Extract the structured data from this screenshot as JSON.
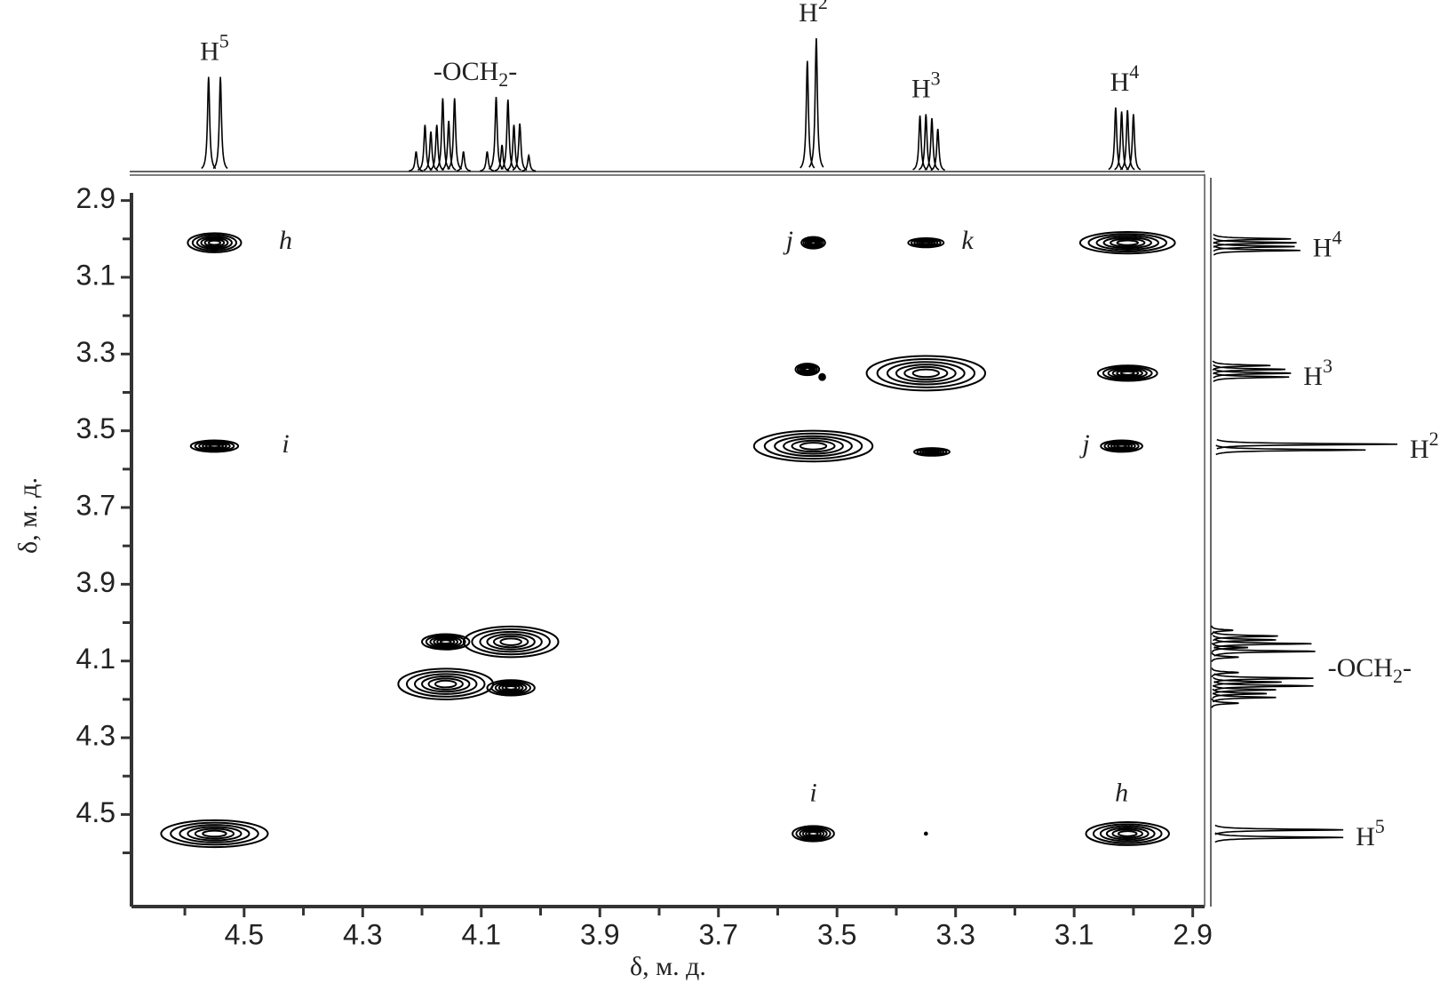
{
  "chart_data": {
    "type": "cosy",
    "x_label": "δ, м. д.",
    "y_label": "δ, м. д.",
    "xlim": [
      4.69,
      2.88
    ],
    "ylim": [
      2.88,
      4.74
    ],
    "xticks": [
      4.5,
      4.3,
      4.1,
      3.9,
      3.7,
      3.5,
      3.3,
      3.1,
      2.9
    ],
    "x_minor_ticks": [
      4.6,
      4.4,
      4.2,
      4.0,
      3.8,
      3.6,
      3.4,
      3.2,
      3.0
    ],
    "yticks": [
      2.9,
      3.1,
      3.3,
      3.5,
      3.7,
      3.9,
      4.1,
      4.3,
      4.5
    ],
    "y_minor_ticks": [
      3.0,
      3.2,
      3.4,
      3.6,
      3.8,
      4.0,
      4.2,
      4.4,
      4.6
    ],
    "spectrum": [
      {
        "x": 4.56,
        "h": 0.71
      },
      {
        "x": 4.54,
        "h": 0.71
      },
      {
        "x": 4.21,
        "h": 0.15
      },
      {
        "x": 4.195,
        "h": 0.35
      },
      {
        "x": 4.185,
        "h": 0.3
      },
      {
        "x": 4.175,
        "h": 0.35
      },
      {
        "x": 4.165,
        "h": 0.55
      },
      {
        "x": 4.155,
        "h": 0.38
      },
      {
        "x": 4.145,
        "h": 0.55
      },
      {
        "x": 4.13,
        "h": 0.15
      },
      {
        "x": 4.09,
        "h": 0.15
      },
      {
        "x": 4.075,
        "h": 0.56
      },
      {
        "x": 4.065,
        "h": 0.2
      },
      {
        "x": 4.055,
        "h": 0.54
      },
      {
        "x": 4.045,
        "h": 0.35
      },
      {
        "x": 4.035,
        "h": 0.36
      },
      {
        "x": 4.02,
        "h": 0.12
      },
      {
        "x": 3.55,
        "h": 0.83
      },
      {
        "x": 3.535,
        "h": 1.0
      },
      {
        "x": 3.36,
        "h": 0.42
      },
      {
        "x": 3.35,
        "h": 0.43
      },
      {
        "x": 3.34,
        "h": 0.4
      },
      {
        "x": 3.33,
        "h": 0.32
      },
      {
        "x": 3.03,
        "h": 0.48
      },
      {
        "x": 3.02,
        "h": 0.45
      },
      {
        "x": 3.01,
        "h": 0.46
      },
      {
        "x": 3.0,
        "h": 0.43
      }
    ],
    "signals": [
      {
        "text": "H",
        "sup": "5",
        "x": 4.55
      },
      {
        "text": "-OCH",
        "sub": "2",
        "tail": "-",
        "x": 4.11
      },
      {
        "text": "H",
        "sup": "2",
        "x": 3.54
      },
      {
        "text": "H",
        "sup": "3",
        "x": 3.35
      },
      {
        "text": "H",
        "sup": "4",
        "x": 3.015
      }
    ],
    "peaks": [
      {
        "x": 4.55,
        "y": 3.01,
        "rx": 0.045,
        "ry": 0.025
      },
      {
        "x": 3.54,
        "y": 3.01,
        "rx": 0.02,
        "ry": 0.015
      },
      {
        "x": 3.35,
        "y": 3.01,
        "rx": 0.03,
        "ry": 0.012
      },
      {
        "x": 3.01,
        "y": 3.01,
        "rx": 0.08,
        "ry": 0.028
      },
      {
        "x": 3.55,
        "y": 3.34,
        "rx": 0.02,
        "ry": 0.015
      },
      {
        "x": 3.525,
        "y": 3.36,
        "rx": 0.005,
        "ry": 0.008
      },
      {
        "x": 3.35,
        "y": 3.35,
        "rx": 0.1,
        "ry": 0.045
      },
      {
        "x": 3.01,
        "y": 3.35,
        "rx": 0.05,
        "ry": 0.02
      },
      {
        "x": 4.55,
        "y": 3.54,
        "rx": 0.04,
        "ry": 0.015
      },
      {
        "x": 3.54,
        "y": 3.54,
        "rx": 0.1,
        "ry": 0.04
      },
      {
        "x": 3.34,
        "y": 3.555,
        "rx": 0.03,
        "ry": 0.01
      },
      {
        "x": 3.02,
        "y": 3.54,
        "rx": 0.035,
        "ry": 0.015
      },
      {
        "x": 4.16,
        "y": 4.05,
        "rx": 0.04,
        "ry": 0.02
      },
      {
        "x": 4.05,
        "y": 4.05,
        "rx": 0.08,
        "ry": 0.04
      },
      {
        "x": 4.16,
        "y": 4.16,
        "rx": 0.08,
        "ry": 0.04
      },
      {
        "x": 4.05,
        "y": 4.17,
        "rx": 0.04,
        "ry": 0.02
      },
      {
        "x": 4.55,
        "y": 4.55,
        "rx": 0.09,
        "ry": 0.035
      },
      {
        "x": 3.54,
        "y": 4.55,
        "rx": 0.035,
        "ry": 0.02
      },
      {
        "x": 3.01,
        "y": 4.55,
        "rx": 0.07,
        "ry": 0.03
      },
      {
        "x": 3.35,
        "y": 4.55,
        "rx": 0.002,
        "ry": 0.003
      }
    ],
    "annotations": [
      {
        "text": "h",
        "x": 4.43,
        "y": 3.01
      },
      {
        "text": "j",
        "x": 3.58,
        "y": 3.01
      },
      {
        "text": "k",
        "x": 3.28,
        "y": 3.01
      },
      {
        "text": "i",
        "x": 4.43,
        "y": 3.54
      },
      {
        "text": "j",
        "x": 3.08,
        "y": 3.54
      },
      {
        "text": "i",
        "x": 3.54,
        "y": 4.45
      },
      {
        "text": "h",
        "x": 3.02,
        "y": 4.45
      }
    ],
    "color": "#000000"
  }
}
